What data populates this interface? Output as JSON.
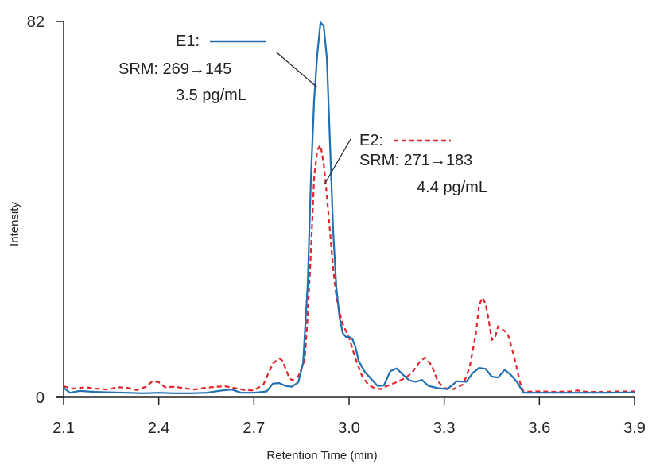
{
  "chart_data": {
    "type": "line",
    "title": "",
    "xlabel": "Retention Time (min)",
    "ylabel": "Intensity",
    "xlim": [
      2.1,
      3.9
    ],
    "ylim": [
      0,
      82
    ],
    "x_ticks": [
      "2.1",
      "2.4",
      "2.7",
      "3.0",
      "3.3",
      "3.6",
      "3.9"
    ],
    "y_ticks": [
      "0",
      "82"
    ],
    "grid": false,
    "series": [
      {
        "name": "E1",
        "color": "#1f6fb2",
        "style": "solid",
        "annotation": [
          "E1:",
          "SRM: 269→145",
          "3.5 pg/mL"
        ],
        "points": [
          [
            2.1,
            2.1
          ],
          [
            2.12,
            1.0
          ],
          [
            2.15,
            1.4
          ],
          [
            2.2,
            1.2
          ],
          [
            2.25,
            1.1
          ],
          [
            2.3,
            1.0
          ],
          [
            2.35,
            0.9
          ],
          [
            2.4,
            1.0
          ],
          [
            2.45,
            0.9
          ],
          [
            2.5,
            0.9
          ],
          [
            2.55,
            1.0
          ],
          [
            2.6,
            1.5
          ],
          [
            2.63,
            1.7
          ],
          [
            2.66,
            1.0
          ],
          [
            2.7,
            1.0
          ],
          [
            2.74,
            1.3
          ],
          [
            2.76,
            3.0
          ],
          [
            2.78,
            3.1
          ],
          [
            2.8,
            2.5
          ],
          [
            2.82,
            2.3
          ],
          [
            2.84,
            3.3
          ],
          [
            2.855,
            7.5
          ],
          [
            2.87,
            25.0
          ],
          [
            2.88,
            48.0
          ],
          [
            2.89,
            65.0
          ],
          [
            2.9,
            75.0
          ],
          [
            2.91,
            81.8
          ],
          [
            2.92,
            81.0
          ],
          [
            2.93,
            74.0
          ],
          [
            2.94,
            55.0
          ],
          [
            2.95,
            36.0
          ],
          [
            2.96,
            24.0
          ],
          [
            2.97,
            17.5
          ],
          [
            2.98,
            14.0
          ],
          [
            2.99,
            13.2
          ],
          [
            3.0,
            13.2
          ],
          [
            3.01,
            12.8
          ],
          [
            3.02,
            11.0
          ],
          [
            3.03,
            8.0
          ],
          [
            3.05,
            5.5
          ],
          [
            3.07,
            4.0
          ],
          [
            3.09,
            2.5
          ],
          [
            3.11,
            2.6
          ],
          [
            3.13,
            5.7
          ],
          [
            3.15,
            6.3
          ],
          [
            3.17,
            4.9
          ],
          [
            3.19,
            3.7
          ],
          [
            3.21,
            3.4
          ],
          [
            3.23,
            3.8
          ],
          [
            3.25,
            2.5
          ],
          [
            3.28,
            2.0
          ],
          [
            3.31,
            1.8
          ],
          [
            3.34,
            3.5
          ],
          [
            3.37,
            3.4
          ],
          [
            3.39,
            5.3
          ],
          [
            3.41,
            6.4
          ],
          [
            3.43,
            6.2
          ],
          [
            3.45,
            4.5
          ],
          [
            3.47,
            4.3
          ],
          [
            3.49,
            6.0
          ],
          [
            3.51,
            4.9
          ],
          [
            3.53,
            3.3
          ],
          [
            3.55,
            1.0
          ],
          [
            3.6,
            1.0
          ],
          [
            3.7,
            1.0
          ],
          [
            3.8,
            1.0
          ],
          [
            3.9,
            1.1
          ]
        ]
      },
      {
        "name": "E2",
        "color": "#e2242b",
        "style": "dashed",
        "annotation": [
          "E2:",
          "SRM: 271→183",
          "4.4 pg/mL"
        ],
        "points": [
          [
            2.1,
            2.4
          ],
          [
            2.13,
            1.9
          ],
          [
            2.17,
            2.2
          ],
          [
            2.2,
            1.9
          ],
          [
            2.24,
            1.7
          ],
          [
            2.27,
            2.2
          ],
          [
            2.3,
            2.1
          ],
          [
            2.33,
            1.6
          ],
          [
            2.36,
            2.3
          ],
          [
            2.38,
            3.5
          ],
          [
            2.4,
            3.3
          ],
          [
            2.42,
            2.2
          ],
          [
            2.45,
            2.3
          ],
          [
            2.48,
            2.0
          ],
          [
            2.51,
            1.7
          ],
          [
            2.55,
            2.1
          ],
          [
            2.58,
            2.3
          ],
          [
            2.61,
            2.4
          ],
          [
            2.64,
            2.0
          ],
          [
            2.67,
            1.6
          ],
          [
            2.7,
            1.5
          ],
          [
            2.73,
            2.8
          ],
          [
            2.76,
            7.4
          ],
          [
            2.78,
            8.5
          ],
          [
            2.79,
            8.0
          ],
          [
            2.81,
            4.5
          ],
          [
            2.82,
            3.7
          ],
          [
            2.84,
            4.6
          ],
          [
            2.86,
            8.0
          ],
          [
            2.87,
            18.0
          ],
          [
            2.88,
            32.0
          ],
          [
            2.89,
            48.0
          ],
          [
            2.9,
            54.0
          ],
          [
            2.91,
            55.0
          ],
          [
            2.92,
            51.0
          ],
          [
            2.93,
            44.0
          ],
          [
            2.94,
            36.0
          ],
          [
            2.95,
            28.0
          ],
          [
            2.96,
            22.0
          ],
          [
            2.97,
            18.5
          ],
          [
            2.98,
            16.0
          ],
          [
            3.0,
            13.0
          ],
          [
            3.02,
            8.5
          ],
          [
            3.04,
            4.8
          ],
          [
            3.06,
            2.8
          ],
          [
            3.08,
            2.0
          ],
          [
            3.1,
            1.8
          ],
          [
            3.12,
            2.5
          ],
          [
            3.15,
            3.3
          ],
          [
            3.18,
            4.3
          ],
          [
            3.2,
            5.5
          ],
          [
            3.22,
            7.5
          ],
          [
            3.24,
            8.7
          ],
          [
            3.26,
            7.0
          ],
          [
            3.28,
            3.5
          ],
          [
            3.3,
            2.0
          ],
          [
            3.33,
            1.8
          ],
          [
            3.36,
            2.8
          ],
          [
            3.38,
            6.5
          ],
          [
            3.4,
            14.0
          ],
          [
            3.41,
            20.0
          ],
          [
            3.42,
            21.8
          ],
          [
            3.43,
            20.5
          ],
          [
            3.44,
            17.0
          ],
          [
            3.45,
            12.5
          ],
          [
            3.46,
            13.0
          ],
          [
            3.47,
            15.5
          ],
          [
            3.48,
            15.0
          ],
          [
            3.5,
            14.0
          ],
          [
            3.52,
            9.0
          ],
          [
            3.54,
            3.0
          ],
          [
            3.55,
            1.2
          ],
          [
            3.6,
            1.3
          ],
          [
            3.65,
            1.2
          ],
          [
            3.7,
            1.3
          ],
          [
            3.72,
            1.5
          ],
          [
            3.75,
            1.2
          ],
          [
            3.8,
            1.2
          ],
          [
            3.85,
            1.3
          ],
          [
            3.9,
            1.3
          ]
        ]
      }
    ]
  }
}
